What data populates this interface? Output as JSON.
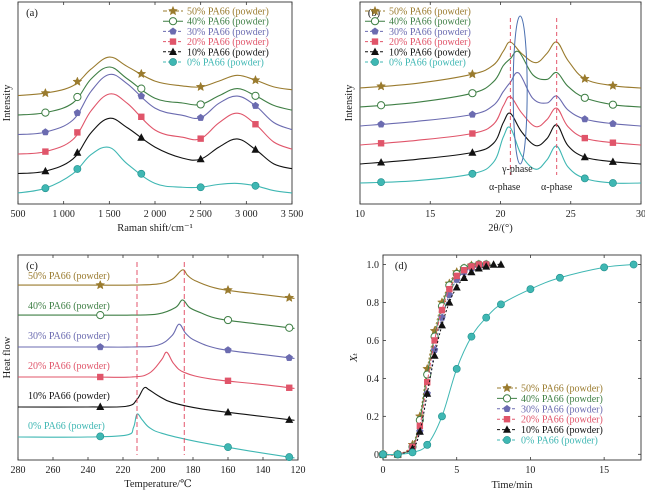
{
  "figure": {
    "colors": {
      "p50": "#9a7b2e",
      "p40": "#3f7f45",
      "p30": "#6b6bb0",
      "p20": "#e0556a",
      "p10": "#111111",
      "p0": "#3fb7b3",
      "dashed": "#e0445c",
      "ellipse": "#4a6fb0"
    },
    "series_names": [
      "50% PA66 (powder)",
      "40% PA66 (powder)",
      "30% PA66 (powder)",
      "20% PA66 (powder)",
      "10% PA66 (powder)",
      "0%  PA66 (powder)"
    ],
    "series_markers": [
      "star",
      "circle-open",
      "pentagon",
      "square",
      "triangle",
      "circle-filled"
    ],
    "series_keys": [
      "p50",
      "p40",
      "p30",
      "p20",
      "p10",
      "p0"
    ]
  },
  "chart_data": [
    {
      "panel": "(a)",
      "type": "line",
      "xlabel": "Raman shift/cm⁻¹",
      "ylabel": "Intensity",
      "xlim": [
        500,
        3500
      ],
      "xticks": [
        500,
        1000,
        1500,
        2000,
        2500,
        3000,
        3500
      ],
      "xtick_labels": [
        "500",
        "1 000",
        "1 500",
        "2 000",
        "2 500",
        "3 000",
        "3 500"
      ],
      "peaks_note": "broad bands near 1500 and 2900 cm⁻¹",
      "series": [
        {
          "name": "50% PA66 (powder)",
          "offset": 5,
          "x": [
            500,
            800,
            1100,
            1300,
            1500,
            1700,
            2000,
            2300,
            2500,
            2700,
            2900,
            3100,
            3300,
            3500
          ],
          "y": [
            0.0,
            0.05,
            0.2,
            0.55,
            0.8,
            0.6,
            0.3,
            0.2,
            0.18,
            0.3,
            0.42,
            0.32,
            0.18,
            0.12
          ]
        },
        {
          "name": "40% PA66 (powder)",
          "offset": 4,
          "x": [
            500,
            800,
            1100,
            1300,
            1500,
            1700,
            2000,
            2300,
            2500,
            2700,
            2900,
            3100,
            3300,
            3500
          ],
          "y": [
            0.0,
            0.05,
            0.25,
            0.75,
            1.0,
            0.75,
            0.35,
            0.25,
            0.22,
            0.4,
            0.55,
            0.4,
            0.2,
            0.1
          ]
        },
        {
          "name": "30% PA66 (powder)",
          "offset": 3,
          "x": [
            500,
            800,
            1100,
            1300,
            1500,
            1700,
            2000,
            2300,
            2500,
            2700,
            2900,
            3100,
            3300,
            3500
          ],
          "y": [
            0.0,
            0.05,
            0.3,
            0.9,
            1.25,
            1.05,
            0.55,
            0.4,
            0.35,
            0.65,
            0.8,
            0.6,
            0.25,
            0.1
          ]
        },
        {
          "name": "20% PA66 (powder)",
          "offset": 2,
          "x": [
            500,
            800,
            1100,
            1300,
            1500,
            1700,
            2000,
            2300,
            2500,
            2700,
            2900,
            3100,
            3300,
            3500
          ],
          "y": [
            0.0,
            0.05,
            0.3,
            0.9,
            1.25,
            1.05,
            0.5,
            0.35,
            0.32,
            0.65,
            0.85,
            0.62,
            0.25,
            0.1
          ]
        },
        {
          "name": "10% PA66 (powder)",
          "offset": 1,
          "x": [
            500,
            800,
            1100,
            1300,
            1500,
            1700,
            2000,
            2300,
            2500,
            2700,
            2900,
            3100,
            3300,
            3500
          ],
          "y": [
            0.0,
            0.05,
            0.3,
            0.85,
            1.15,
            0.95,
            0.55,
            0.32,
            0.3,
            0.55,
            0.72,
            0.5,
            0.2,
            0.1
          ]
        },
        {
          "name": "0%  PA66 (powder)",
          "offset": 0,
          "x": [
            500,
            800,
            1100,
            1300,
            1500,
            1700,
            2000,
            2300,
            2500,
            2700,
            2900,
            3100,
            3300,
            3500
          ],
          "y": [
            0.0,
            0.1,
            0.4,
            0.8,
            0.95,
            0.6,
            0.2,
            0.12,
            0.12,
            0.18,
            0.2,
            0.15,
            0.05,
            0.0
          ]
        }
      ]
    },
    {
      "panel": "(b)",
      "type": "line",
      "xlabel": "2θ/(°)",
      "ylabel": "Intensity",
      "xlim": [
        10,
        30
      ],
      "xticks": [
        10,
        15,
        20,
        25,
        30
      ],
      "xtick_labels": [
        "10",
        "15",
        "20",
        "25",
        "30"
      ],
      "dashed_lines_x": [
        20.7,
        24.0
      ],
      "annotations": [
        "γ-phase",
        "α-phase",
        "α-phase"
      ],
      "series": [
        {
          "name": "50% PA66 (powder)",
          "offset": 5,
          "x": [
            10,
            14,
            18,
            19.5,
            20.2,
            20.7,
            21.5,
            22.5,
            23.3,
            24.0,
            24.8,
            26,
            28,
            30
          ],
          "y": [
            0.0,
            0.1,
            0.3,
            0.5,
            0.8,
            1.0,
            0.75,
            0.55,
            0.75,
            1.0,
            0.6,
            0.2,
            0.05,
            0.0
          ]
        },
        {
          "name": "40% PA66 (powder)",
          "offset": 4,
          "x": [
            10,
            14,
            18,
            19.5,
            20.2,
            20.7,
            21.3,
            22.3,
            23.3,
            24.0,
            24.8,
            26,
            28,
            30
          ],
          "y": [
            0.0,
            0.1,
            0.3,
            0.55,
            0.9,
            1.05,
            1.2,
            0.7,
            0.6,
            0.75,
            0.45,
            0.2,
            0.05,
            0.0
          ]
        },
        {
          "name": "30% PA66 (powder)",
          "offset": 3,
          "x": [
            10,
            14,
            18,
            19.5,
            20.2,
            20.7,
            21.3,
            22.3,
            23.3,
            24.0,
            24.8,
            26,
            28,
            30
          ],
          "y": [
            0.0,
            0.1,
            0.25,
            0.45,
            0.75,
            0.95,
            1.15,
            0.6,
            0.5,
            0.65,
            0.35,
            0.15,
            0.05,
            0.0
          ]
        },
        {
          "name": "20% PA66 (powder)",
          "offset": 2,
          "x": [
            10,
            14,
            18,
            19.5,
            20.2,
            20.7,
            21.5,
            22.5,
            23.3,
            24.0,
            24.8,
            26,
            28,
            30
          ],
          "y": [
            0.0,
            0.1,
            0.25,
            0.45,
            0.85,
            1.05,
            0.7,
            0.4,
            0.55,
            0.8,
            0.4,
            0.15,
            0.05,
            0.0
          ]
        },
        {
          "name": "10% PA66 (powder)",
          "offset": 1,
          "x": [
            10,
            14,
            18,
            19.5,
            20.2,
            20.7,
            21.5,
            22.5,
            23.3,
            24.0,
            24.8,
            26,
            28,
            30
          ],
          "y": [
            0.0,
            0.1,
            0.25,
            0.45,
            0.9,
            1.1,
            0.7,
            0.4,
            0.55,
            0.85,
            0.4,
            0.15,
            0.05,
            0.0
          ]
        },
        {
          "name": "0%  PA66 (powder)",
          "offset": 0,
          "x": [
            10,
            14,
            18,
            19.5,
            20.2,
            20.7,
            21.5,
            22.5,
            23.3,
            24.0,
            24.8,
            26,
            28,
            30
          ],
          "y": [
            0.0,
            0.05,
            0.2,
            0.45,
            1.0,
            1.2,
            0.6,
            0.3,
            0.5,
            0.8,
            0.35,
            0.1,
            0.0,
            0.0
          ]
        }
      ]
    },
    {
      "panel": "(c)",
      "type": "line",
      "xlabel": "Temperature/℃",
      "ylabel": "Heat flow",
      "xlim": [
        280,
        120
      ],
      "xticks": [
        280,
        260,
        240,
        220,
        200,
        180,
        160,
        140,
        120
      ],
      "xtick_labels": [
        "280",
        "260",
        "240",
        "220",
        "200",
        "180",
        "160",
        "140",
        "120"
      ],
      "dashed_lines_x": [
        212,
        185
      ],
      "series": [
        {
          "name": "50% PA66 (powder)",
          "offset": 5,
          "x": [
            280,
            240,
            215,
            200,
            192,
            186,
            183,
            178,
            165,
            140,
            122
          ],
          "y": [
            0.05,
            0.05,
            0.05,
            0.08,
            0.2,
            0.45,
            0.3,
            0.15,
            -0.05,
            -0.2,
            -0.3
          ]
        },
        {
          "name": "40% PA66 (powder)",
          "offset": 4,
          "x": [
            280,
            240,
            215,
            200,
            190,
            186,
            182,
            176,
            165,
            140,
            122
          ],
          "y": [
            0.05,
            0.05,
            0.05,
            0.08,
            0.25,
            0.45,
            0.25,
            0.12,
            -0.05,
            -0.2,
            -0.3
          ]
        },
        {
          "name": "30% PA66 (powder)",
          "offset": 3,
          "x": [
            280,
            240,
            215,
            200,
            192,
            188,
            184,
            178,
            165,
            140,
            122
          ],
          "y": [
            0.0,
            0.0,
            0.0,
            0.05,
            0.3,
            0.6,
            0.35,
            0.15,
            -0.05,
            -0.2,
            -0.3
          ]
        },
        {
          "name": "20% PA66 (powder)",
          "offset": 2,
          "x": [
            280,
            240,
            215,
            205,
            198,
            195,
            191,
            185,
            170,
            140,
            122
          ],
          "y": [
            0.0,
            0.0,
            0.0,
            0.1,
            0.45,
            0.65,
            0.35,
            0.12,
            -0.05,
            -0.2,
            -0.3
          ]
        },
        {
          "name": "10% PA66 (powder)",
          "offset": 1,
          "x": [
            280,
            240,
            218,
            212,
            208,
            205,
            200,
            192,
            175,
            140,
            122
          ],
          "y": [
            0.0,
            0.0,
            0.02,
            0.2,
            0.5,
            0.45,
            0.3,
            0.12,
            -0.05,
            -0.25,
            -0.35
          ]
        },
        {
          "name": "0%  PA66 (powder)",
          "offset": 0,
          "x": [
            280,
            240,
            218,
            214,
            212,
            209,
            205,
            198,
            180,
            150,
            122
          ],
          "y": [
            0.0,
            0.0,
            0.05,
            0.25,
            0.6,
            0.45,
            0.25,
            0.1,
            -0.1,
            -0.35,
            -0.55
          ]
        }
      ]
    },
    {
      "panel": "(d)",
      "type": "line",
      "xlabel": "Time/min",
      "ylabel": "Xₜ",
      "xlim": [
        0,
        17.5
      ],
      "ylim": [
        -0.03,
        1.05
      ],
      "xticks": [
        0,
        5,
        10,
        15
      ],
      "yticks": [
        0,
        0.2,
        0.4,
        0.6,
        0.8,
        1.0
      ],
      "xtick_labels": [
        "0",
        "5",
        "10",
        "15"
      ],
      "ytick_labels": [
        "0",
        "0.2",
        "0.4",
        "0.6",
        "0.8",
        "1.0"
      ],
      "series": [
        {
          "name": "50% PA66 (powder)",
          "x": [
            0,
            1,
            2,
            2.5,
            3,
            3.5,
            4,
            4.5,
            5,
            5.5,
            6,
            6.5,
            7
          ],
          "y": [
            0,
            0.0,
            0.05,
            0.2,
            0.45,
            0.65,
            0.8,
            0.9,
            0.96,
            0.98,
            0.995,
            1.0,
            1.0
          ]
        },
        {
          "name": "40% PA66 (powder)",
          "x": [
            0,
            1,
            2,
            2.5,
            3,
            3.5,
            4,
            4.5,
            5,
            5.5,
            6,
            6.5,
            7
          ],
          "y": [
            0,
            0.0,
            0.04,
            0.18,
            0.42,
            0.62,
            0.78,
            0.89,
            0.95,
            0.98,
            0.99,
            1.0,
            1.0
          ]
        },
        {
          "name": "30% PA66 (powder)",
          "x": [
            0,
            1,
            2,
            2.5,
            3,
            3.5,
            4,
            4.5,
            5,
            5.5,
            6,
            6.5,
            7
          ],
          "y": [
            0,
            0.0,
            0.03,
            0.12,
            0.32,
            0.55,
            0.72,
            0.84,
            0.92,
            0.96,
            0.98,
            0.99,
            1.0
          ]
        },
        {
          "name": "20% PA66 (powder)",
          "x": [
            0,
            1,
            2,
            2.5,
            3,
            3.5,
            4,
            4.5,
            5,
            5.5,
            6,
            6.5,
            7
          ],
          "y": [
            0,
            0.0,
            0.04,
            0.15,
            0.38,
            0.6,
            0.76,
            0.87,
            0.94,
            0.97,
            0.99,
            1.0,
            1.0
          ]
        },
        {
          "name": "10% PA66 (powder)",
          "x": [
            0,
            1,
            2,
            2.5,
            3,
            3.5,
            4,
            4.5,
            5,
            5.5,
            6,
            6.5,
            7,
            7.5,
            8
          ],
          "y": [
            0,
            0.0,
            0.03,
            0.12,
            0.32,
            0.52,
            0.68,
            0.8,
            0.88,
            0.93,
            0.96,
            0.98,
            0.99,
            1.0,
            1.0
          ]
        },
        {
          "name": "0%  PA66 (powder)",
          "x": [
            0,
            1,
            2,
            3,
            4,
            5,
            6,
            7,
            8,
            10,
            12,
            15,
            17
          ],
          "y": [
            0,
            0.0,
            0.01,
            0.05,
            0.2,
            0.45,
            0.62,
            0.72,
            0.79,
            0.87,
            0.93,
            0.985,
            1.0
          ]
        }
      ]
    }
  ]
}
